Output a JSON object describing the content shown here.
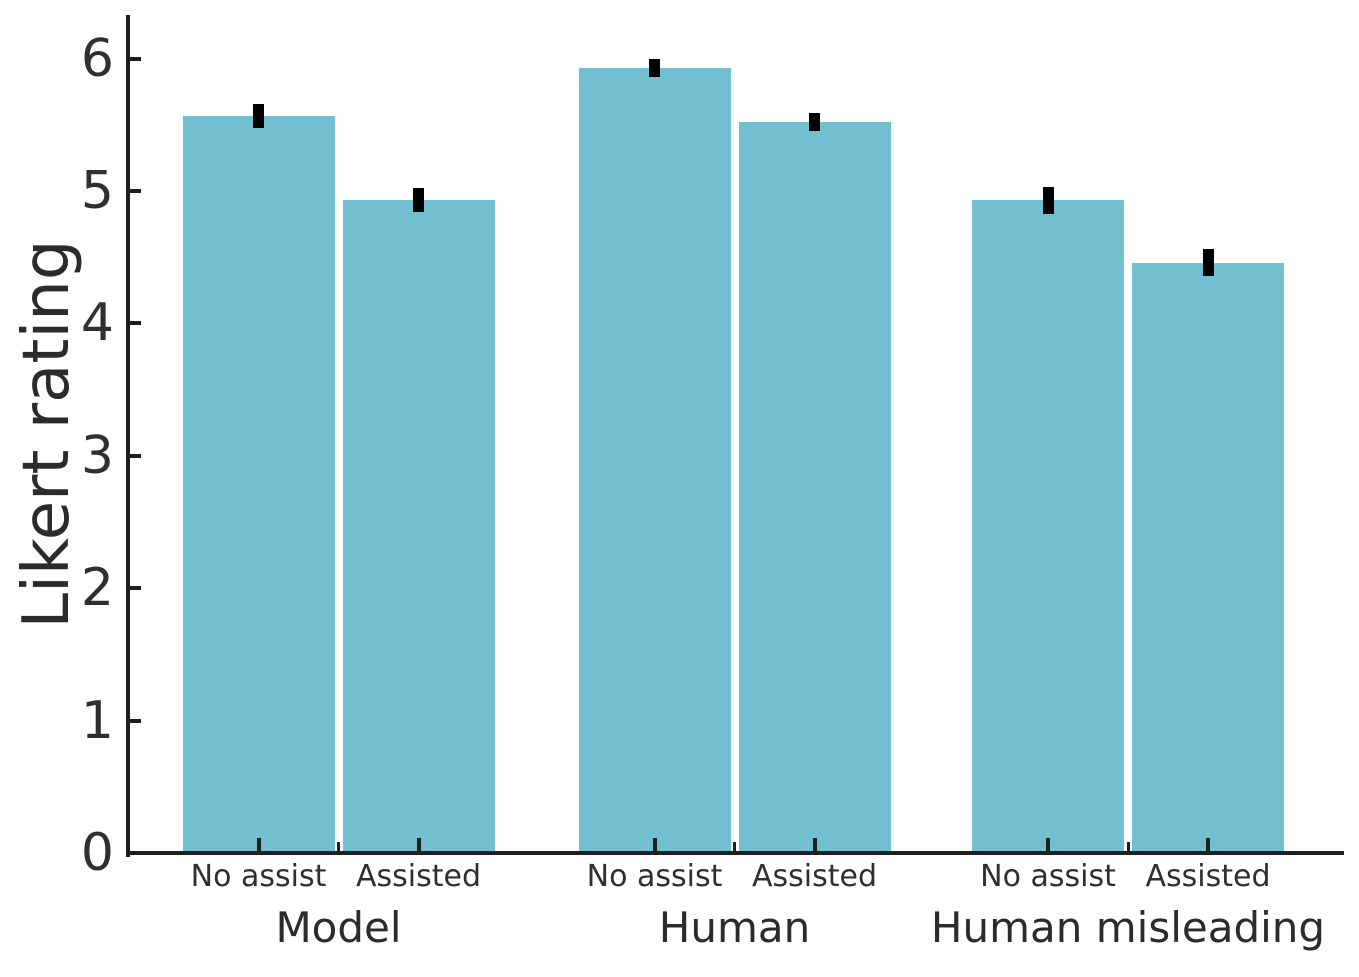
{
  "chart_data": {
    "type": "bar",
    "title": "",
    "ylabel": "Likert rating",
    "xlabel": "",
    "ylim": [
      0,
      6.33
    ],
    "yticks": [
      0,
      1,
      2,
      3,
      4,
      5,
      6
    ],
    "grid": false,
    "bar_color": "#71bfd0",
    "error_bar_color": "#000000",
    "axis_color": "#1f1f1f",
    "text_color": "#2f2f2f",
    "groups": [
      {
        "label": "Model",
        "bars": [
          {
            "label": "No assist",
            "value": 5.57,
            "error": 0.09
          },
          {
            "label": "Assisted",
            "value": 4.93,
            "error": 0.09
          }
        ]
      },
      {
        "label": "Human",
        "bars": [
          {
            "label": "No assist",
            "value": 5.93,
            "error": 0.07
          },
          {
            "label": "Assisted",
            "value": 5.52,
            "error": 0.07
          }
        ]
      },
      {
        "label": "Human misleading",
        "bars": [
          {
            "label": "No assist",
            "value": 4.93,
            "error": 0.1
          },
          {
            "label": "Assisted",
            "value": 4.46,
            "error": 0.1
          }
        ]
      }
    ]
  }
}
